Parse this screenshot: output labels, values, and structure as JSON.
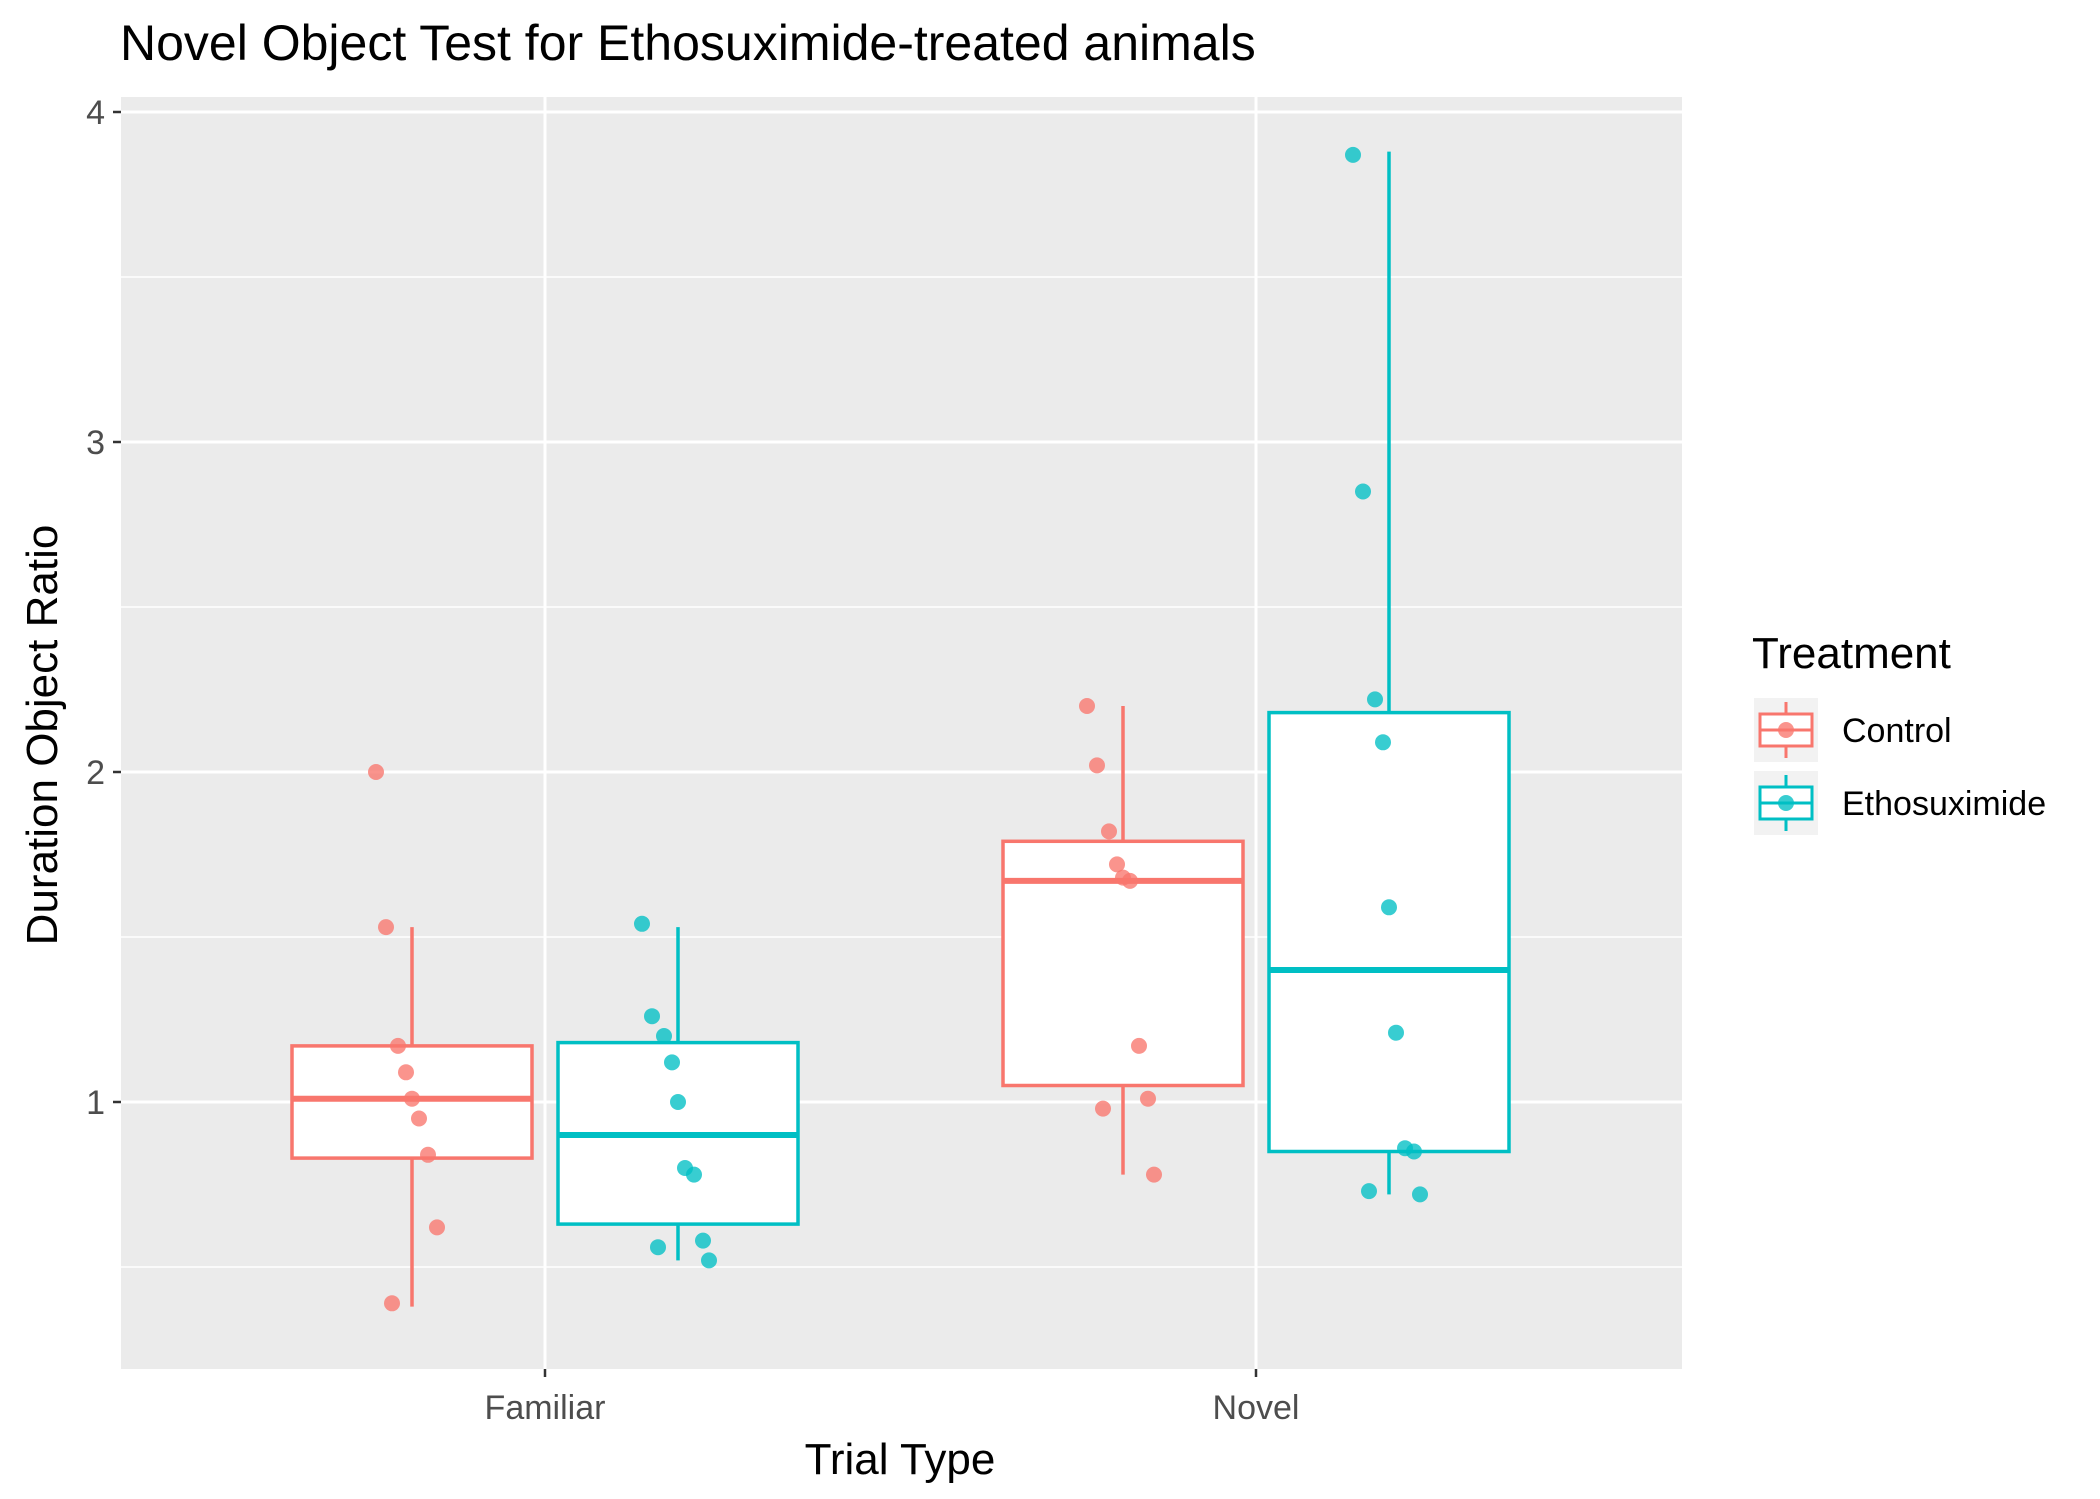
{
  "chart_data": {
    "type": "boxplot",
    "title": "Novel Object Test for Ethosuximide-treated animals",
    "xlabel": "Trial Type",
    "ylabel": "Duration Object Ratio",
    "categories": [
      "Familiar",
      "Novel"
    ],
    "ylim": [
      0.2,
      4.05
    ],
    "yticks": [
      1,
      2,
      3,
      4
    ],
    "grid": true,
    "legend": {
      "title": "Treatment",
      "placement": "right"
    },
    "series": [
      {
        "name": "Control",
        "color": "#F8766D",
        "boxes": [
          {
            "category": "Familiar",
            "min": 0.38,
            "q1": 0.83,
            "median": 1.01,
            "q3": 1.17,
            "max": 1.53
          },
          {
            "category": "Novel",
            "min": 0.78,
            "q1": 1.05,
            "median": 1.67,
            "q3": 1.79,
            "max": 2.2
          }
        ],
        "points": [
          {
            "category": "Familiar",
            "values": [
              2.0,
              1.53,
              1.17,
              1.09,
              1.01,
              0.95,
              0.84,
              0.62,
              0.39
            ]
          },
          {
            "category": "Novel",
            "values": [
              2.2,
              2.02,
              1.82,
              1.72,
              1.68,
              1.67,
              1.17,
              1.01,
              0.98,
              0.78
            ]
          }
        ]
      },
      {
        "name": "Ethosuximide",
        "color": "#00BFC4",
        "boxes": [
          {
            "category": "Familiar",
            "min": 0.52,
            "q1": 0.63,
            "median": 0.9,
            "q3": 1.18,
            "max": 1.53
          },
          {
            "category": "Novel",
            "min": 0.72,
            "q1": 0.85,
            "median": 1.4,
            "q3": 2.18,
            "max": 3.88
          }
        ],
        "points": [
          {
            "category": "Familiar",
            "values": [
              1.54,
              1.26,
              1.2,
              1.12,
              1.0,
              0.8,
              0.78,
              0.58,
              0.56,
              0.52
            ]
          },
          {
            "category": "Novel",
            "values": [
              3.87,
              2.85,
              2.22,
              2.09,
              1.59,
              1.21,
              0.86,
              0.85,
              0.73,
              0.72
            ]
          }
        ]
      }
    ]
  }
}
